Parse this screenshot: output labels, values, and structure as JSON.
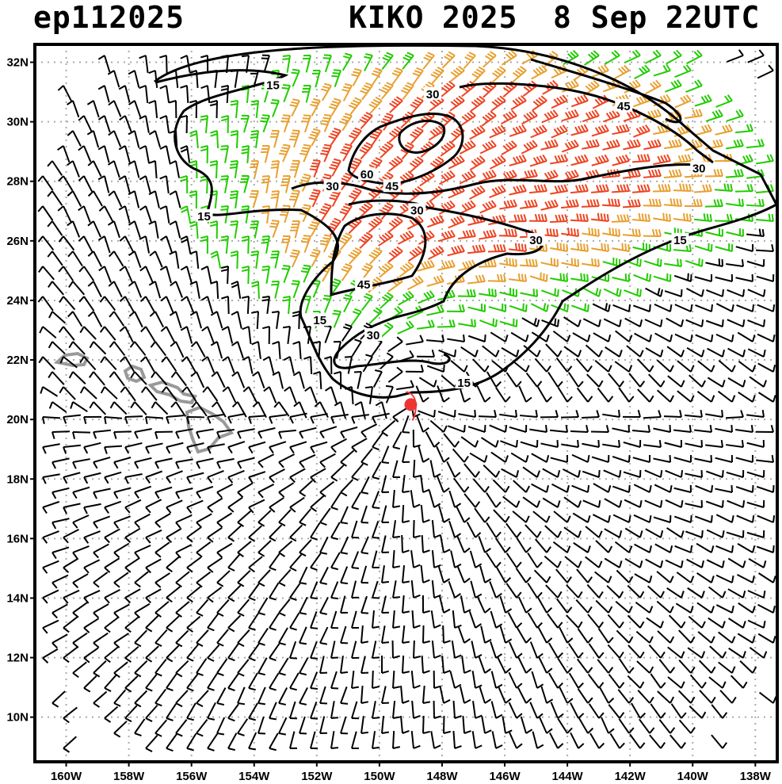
{
  "header": {
    "storm_id": "ep112025",
    "storm_name": "KIKO",
    "year": "2025",
    "date": "8 Sep",
    "time": "22UTC"
  },
  "map": {
    "lon_range": [
      -161,
      -137.3
    ],
    "lat_range": [
      8.5,
      32.6
    ],
    "lat_ticks": [
      {
        "value": 10,
        "label": "10N"
      },
      {
        "value": 12,
        "label": "12N"
      },
      {
        "value": 14,
        "label": "14N"
      },
      {
        "value": 16,
        "label": "16N"
      },
      {
        "value": 18,
        "label": "18N"
      },
      {
        "value": 20,
        "label": "20N"
      },
      {
        "value": 22,
        "label": "22N"
      },
      {
        "value": 24,
        "label": "24N"
      },
      {
        "value": 26,
        "label": "26N"
      },
      {
        "value": 28,
        "label": "28N"
      },
      {
        "value": 30,
        "label": "30N"
      },
      {
        "value": 32,
        "label": "32N"
      }
    ],
    "lon_ticks": [
      {
        "value": -160,
        "label": "160W"
      },
      {
        "value": -158,
        "label": "158W"
      },
      {
        "value": -156,
        "label": "156W"
      },
      {
        "value": -154,
        "label": "154W"
      },
      {
        "value": -152,
        "label": "152W"
      },
      {
        "value": -150,
        "label": "150W"
      },
      {
        "value": -148,
        "label": "148W"
      },
      {
        "value": -146,
        "label": "146W"
      },
      {
        "value": -144,
        "label": "144W"
      },
      {
        "value": -142,
        "label": "142W"
      },
      {
        "value": -140,
        "label": "140W"
      },
      {
        "value": -138,
        "label": "138W"
      }
    ],
    "storm_center": {
      "lon": -149.0,
      "lat": 20.5
    },
    "contour_labels": [
      {
        "text": "15",
        "lon": -153.4,
        "lat": 31.2
      },
      {
        "text": "15",
        "lon": -155.6,
        "lat": 26.8
      },
      {
        "text": "15",
        "lon": -151.9,
        "lat": 23.3
      },
      {
        "text": "15",
        "lon": -147.3,
        "lat": 21.2
      },
      {
        "text": "15",
        "lon": -140.4,
        "lat": 26.0
      },
      {
        "text": "30",
        "lon": -148.3,
        "lat": 30.9
      },
      {
        "text": "30",
        "lon": -151.5,
        "lat": 27.8
      },
      {
        "text": "30",
        "lon": -148.8,
        "lat": 27.0
      },
      {
        "text": "30",
        "lon": -150.2,
        "lat": 22.8
      },
      {
        "text": "30",
        "lon": -145.0,
        "lat": 26.0
      },
      {
        "text": "30",
        "lon": -139.8,
        "lat": 28.4
      },
      {
        "text": "45",
        "lon": -149.6,
        "lat": 27.8
      },
      {
        "text": "45",
        "lon": -150.5,
        "lat": 24.5
      },
      {
        "text": "45",
        "lon": -142.2,
        "lat": 30.5
      },
      {
        "text": "60",
        "lon": -150.4,
        "lat": 28.2
      }
    ],
    "colors": {
      "calm_barb": "#000000",
      "moderate_barb": "#22cc00",
      "strong_barb": "#e8a030",
      "very_strong_barb": "#ee4422",
      "grid": "#aaaaaa",
      "coast": "#999999",
      "storm_marker": "#ee3333"
    }
  }
}
